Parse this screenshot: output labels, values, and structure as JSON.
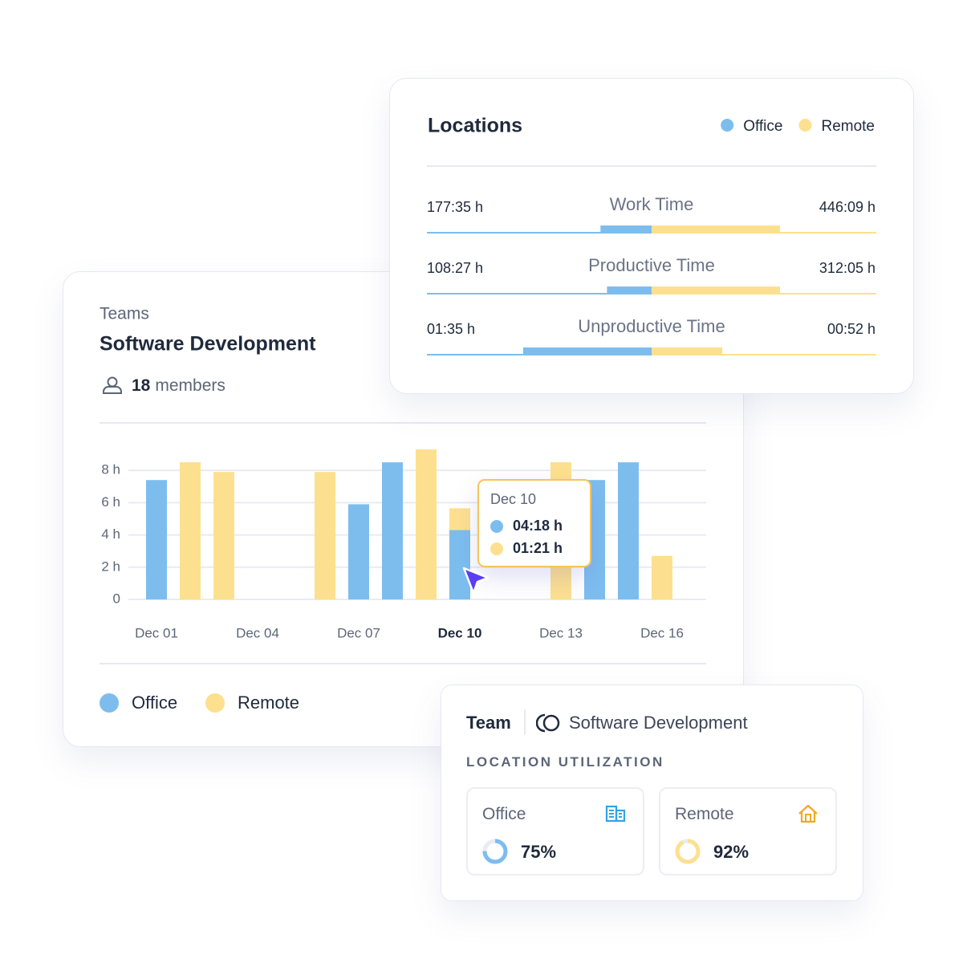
{
  "locations": {
    "title": "Locations",
    "legend": [
      {
        "name": "Office",
        "color": "#7dbdee"
      },
      {
        "name": "Remote",
        "color": "#fde08f"
      }
    ],
    "rows": [
      {
        "label": "Work Time",
        "office": {
          "value": 177.58,
          "label": "177:35 h"
        },
        "remote": {
          "value": 446.15,
          "label": "446:09 h"
        }
      },
      {
        "label": "Productive Time",
        "office": {
          "value": 108.45,
          "label": "108:27 h"
        },
        "remote": {
          "value": 312.08,
          "label": "312:05 h"
        }
      },
      {
        "label": "Unproductive Time",
        "office": {
          "value": 1.58,
          "label": "01:35 h"
        },
        "remote": {
          "value": 0.87,
          "label": "00:52 h"
        }
      }
    ]
  },
  "teams": {
    "kicker": "Teams",
    "title": "Software Development",
    "members": {
      "count": 18,
      "label": "members"
    }
  },
  "chart_data": {
    "type": "stacked_bar",
    "categories": [
      "Dec 01",
      null,
      null,
      "Dec 04",
      null,
      null,
      "Dec 07",
      null,
      null,
      "Dec 10",
      null,
      null,
      "Dec 13",
      null,
      null,
      "Dec 16"
    ],
    "series": [
      {
        "name": "Office",
        "color": "#7dbdee",
        "values": [
          7.4,
          0,
          0,
          0,
          0,
          0,
          5.9,
          8.5,
          0,
          4.3,
          0,
          0,
          0,
          7.4,
          8.5,
          0
        ]
      },
      {
        "name": "Remote",
        "color": "#fde08f",
        "values": [
          0,
          8.5,
          7.9,
          0,
          0,
          7.9,
          0,
          0,
          9.3,
          1.35,
          0,
          0,
          8.5,
          0,
          0,
          2.7
        ]
      }
    ],
    "ylim": [
      0,
      9.5
    ],
    "yticks": [
      0,
      {
        "value": 2,
        "label": "2 h"
      },
      {
        "value": 4,
        "label": "4 h"
      },
      {
        "value": 6,
        "label": "6 h"
      },
      {
        "value": 8,
        "label": "8 h"
      }
    ],
    "grid": true,
    "tooltip": {
      "index": 9,
      "labels": [
        "04:18 h",
        "01:21 h"
      ]
    }
  },
  "team_card": {
    "label": "Team",
    "team": "Software Development",
    "section": "LOCATION UTILIZATION",
    "tiles": [
      {
        "name": "Office",
        "value": 75,
        "label": "75%",
        "color": "#7dbdee"
      },
      {
        "name": "Remote",
        "value": 92,
        "label": "92%",
        "color": "#fde08f"
      }
    ]
  }
}
